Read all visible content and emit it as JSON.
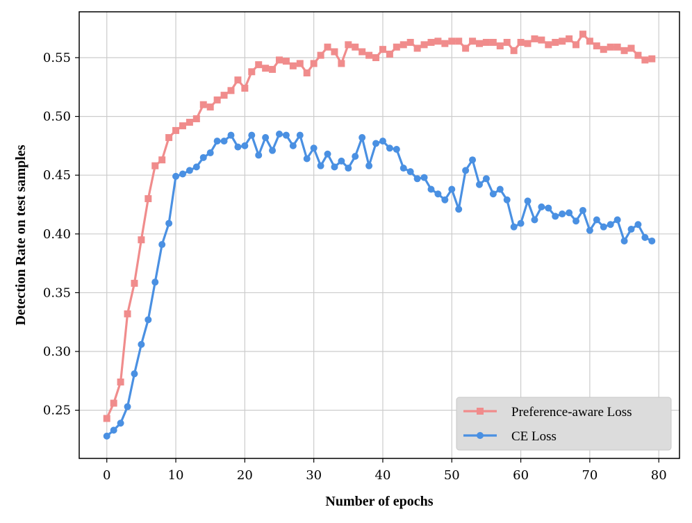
{
  "chart_data": {
    "type": "line",
    "title": "",
    "xlabel": "Number of epochs",
    "ylabel": "Detection Rate on test samples",
    "xlim": [
      -4,
      83
    ],
    "ylim": [
      0.209,
      0.589
    ],
    "xticks": [
      0,
      10,
      20,
      30,
      40,
      50,
      60,
      70,
      80
    ],
    "yticks": [
      0.25,
      0.3,
      0.35,
      0.4,
      0.45,
      0.5,
      0.55
    ],
    "grid": true,
    "legend_position": "lower-right",
    "x": [
      0,
      1,
      2,
      3,
      4,
      5,
      6,
      7,
      8,
      9,
      10,
      11,
      12,
      13,
      14,
      15,
      16,
      17,
      18,
      19,
      20,
      21,
      22,
      23,
      24,
      25,
      26,
      27,
      28,
      29,
      30,
      31,
      32,
      33,
      34,
      35,
      36,
      37,
      38,
      39,
      40,
      41,
      42,
      43,
      44,
      45,
      46,
      47,
      48,
      49,
      50,
      51,
      52,
      53,
      54,
      55,
      56,
      57,
      58,
      59,
      60,
      61,
      62,
      63,
      64,
      65,
      66,
      67,
      68,
      69,
      70,
      71,
      72,
      73,
      74,
      75,
      76,
      77,
      78,
      79
    ],
    "series": [
      {
        "name": "Preference-aware Loss",
        "color": "#f08c8c",
        "marker": "square",
        "values": [
          0.243,
          0.256,
          0.274,
          0.332,
          0.358,
          0.395,
          0.43,
          0.458,
          0.463,
          0.482,
          0.488,
          0.492,
          0.495,
          0.498,
          0.51,
          0.508,
          0.514,
          0.518,
          0.522,
          0.531,
          0.524,
          0.538,
          0.544,
          0.541,
          0.54,
          0.548,
          0.547,
          0.543,
          0.545,
          0.537,
          0.545,
          0.552,
          0.559,
          0.555,
          0.545,
          0.561,
          0.559,
          0.555,
          0.552,
          0.55,
          0.557,
          0.553,
          0.559,
          0.561,
          0.563,
          0.558,
          0.561,
          0.563,
          0.564,
          0.562,
          0.564,
          0.564,
          0.558,
          0.564,
          0.562,
          0.563,
          0.563,
          0.56,
          0.563,
          0.556,
          0.563,
          0.562,
          0.566,
          0.565,
          0.561,
          0.563,
          0.564,
          0.566,
          0.561,
          0.57,
          0.564,
          0.56,
          0.557,
          0.559,
          0.559,
          0.556,
          0.558,
          0.552,
          0.548,
          0.549
        ]
      },
      {
        "name": "CE Loss",
        "color": "#4a90e2",
        "marker": "circle",
        "values": [
          0.228,
          0.233,
          0.239,
          0.253,
          0.281,
          0.306,
          0.327,
          0.359,
          0.391,
          0.409,
          0.449,
          0.451,
          0.454,
          0.457,
          0.465,
          0.469,
          0.479,
          0.479,
          0.484,
          0.474,
          0.475,
          0.484,
          0.467,
          0.482,
          0.471,
          0.485,
          0.484,
          0.475,
          0.484,
          0.464,
          0.473,
          0.458,
          0.468,
          0.457,
          0.462,
          0.456,
          0.466,
          0.482,
          0.458,
          0.477,
          0.479,
          0.473,
          0.472,
          0.456,
          0.453,
          0.447,
          0.448,
          0.438,
          0.434,
          0.429,
          0.438,
          0.421,
          0.454,
          0.463,
          0.442,
          0.447,
          0.434,
          0.438,
          0.429,
          0.406,
          0.409,
          0.428,
          0.412,
          0.423,
          0.422,
          0.415,
          0.417,
          0.418,
          0.411,
          0.42,
          0.403,
          0.412,
          0.406,
          0.408,
          0.412,
          0.394,
          0.404,
          0.408,
          0.397,
          0.394
        ]
      }
    ]
  }
}
